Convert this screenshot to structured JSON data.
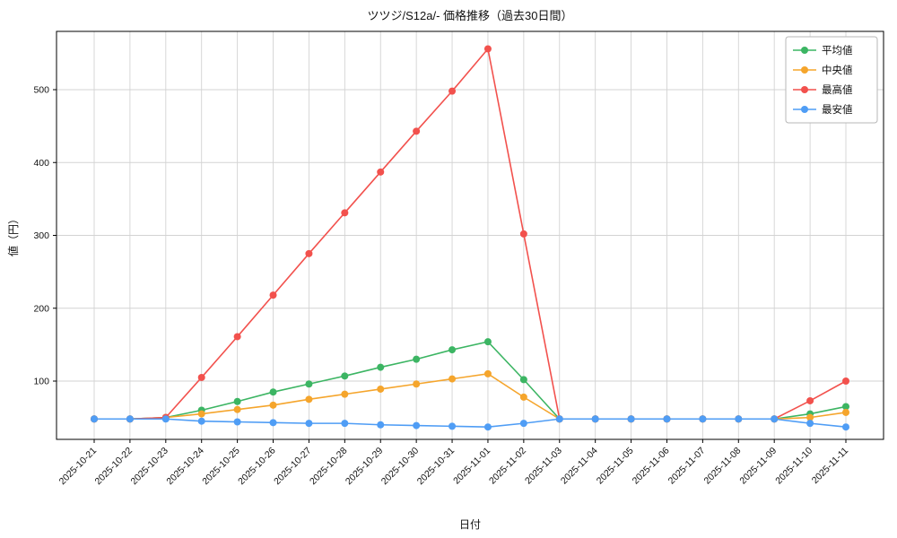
{
  "chart_data": {
    "type": "line",
    "title": "ツツジ/S12a/- 価格推移（過去30日間）",
    "xlabel": "日付",
    "ylabel": "値（円）",
    "grid": true,
    "legend_position": "upper right",
    "ylim": [
      20,
      580
    ],
    "yticks": [
      100,
      200,
      300,
      400,
      500
    ],
    "categories": [
      "2025-10-21",
      "2025-10-22",
      "2025-10-23",
      "2025-10-24",
      "2025-10-25",
      "2025-10-26",
      "2025-10-27",
      "2025-10-28",
      "2025-10-29",
      "2025-10-30",
      "2025-10-31",
      "2025-11-01",
      "2025-11-02",
      "2025-11-03",
      "2025-11-04",
      "2025-11-05",
      "2025-11-06",
      "2025-11-07",
      "2025-11-08",
      "2025-11-09",
      "2025-11-10",
      "2025-11-11"
    ],
    "series": [
      {
        "name": "平均値",
        "color": "#3cb563",
        "values": [
          48,
          48,
          50,
          60,
          72,
          85,
          96,
          107,
          119,
          130,
          143,
          154,
          102,
          48,
          48,
          48,
          48,
          48,
          48,
          48,
          55,
          65
        ]
      },
      {
        "name": "中央値",
        "color": "#f5a52c",
        "values": [
          48,
          48,
          50,
          55,
          61,
          67,
          75,
          82,
          89,
          96,
          103,
          110,
          78,
          48,
          48,
          48,
          48,
          48,
          48,
          48,
          50,
          57
        ]
      },
      {
        "name": "最高値",
        "color": "#f2514d",
        "values": [
          48,
          48,
          50,
          105,
          161,
          218,
          275,
          331,
          387,
          443,
          498,
          556,
          302,
          48,
          48,
          48,
          48,
          48,
          48,
          48,
          73,
          100
        ]
      },
      {
        "name": "最安値",
        "color": "#4f9df5",
        "values": [
          48,
          48,
          48,
          45,
          44,
          43,
          42,
          42,
          40,
          39,
          38,
          37,
          42,
          48,
          48,
          48,
          48,
          48,
          48,
          48,
          42,
          37
        ]
      }
    ]
  }
}
